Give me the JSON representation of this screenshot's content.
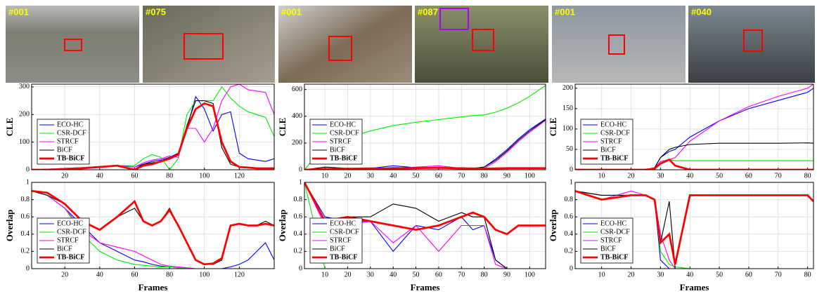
{
  "thumbnails": [
    {
      "label": "#001"
    },
    {
      "label": "#075"
    },
    {
      "label": "#001"
    },
    {
      "label": "#087"
    },
    {
      "label": "#001"
    },
    {
      "label": "#040"
    }
  ],
  "chart_data": [
    {
      "type": "line",
      "ylabel": "CLE",
      "legend": "lower left",
      "grid": true,
      "xlim": [
        1,
        140
      ],
      "xticks": [
        20,
        40,
        60,
        80,
        100,
        120
      ],
      "ylim": [
        0,
        310
      ],
      "yticks": [
        0,
        100,
        200,
        300
      ],
      "x": [
        1,
        10,
        20,
        30,
        40,
        50,
        60,
        65,
        70,
        75,
        80,
        85,
        90,
        95,
        100,
        105,
        110,
        115,
        120,
        125,
        130,
        135,
        140
      ],
      "series": [
        {
          "name": "ECO-HC",
          "color": "#0000ff",
          "width": 1,
          "values": [
            0,
            2,
            5,
            8,
            12,
            15,
            10,
            20,
            30,
            35,
            45,
            60,
            150,
            265,
            220,
            140,
            200,
            210,
            60,
            40,
            35,
            30,
            40
          ]
        },
        {
          "name": "CSR-DCF",
          "color": "#00ee00",
          "width": 1,
          "values": [
            0,
            2,
            5,
            8,
            12,
            15,
            15,
            40,
            55,
            45,
            0,
            40,
            200,
            250,
            250,
            250,
            300,
            260,
            230,
            210,
            200,
            190,
            120
          ]
        },
        {
          "name": "STRCF",
          "color": "#ff00ff",
          "width": 1,
          "values": [
            0,
            2,
            5,
            8,
            12,
            15,
            10,
            25,
            35,
            40,
            50,
            45,
            150,
            150,
            100,
            150,
            250,
            300,
            310,
            290,
            285,
            280,
            200
          ]
        },
        {
          "name": "BiCF",
          "color": "#000000",
          "width": 1,
          "values": [
            0,
            0,
            2,
            5,
            10,
            15,
            2,
            20,
            25,
            30,
            40,
            60,
            160,
            250,
            250,
            240,
            80,
            20,
            10,
            8,
            5,
            5,
            5
          ]
        },
        {
          "name": "TB-BiCF",
          "color": "#ff0000",
          "width": 2.5,
          "values": [
            0,
            0,
            2,
            5,
            10,
            15,
            0,
            15,
            20,
            30,
            40,
            55,
            150,
            220,
            240,
            230,
            100,
            30,
            10,
            8,
            5,
            5,
            5
          ]
        }
      ]
    },
    {
      "type": "line",
      "ylabel": "Overlap",
      "xlabel": "Frames",
      "legend": "lower left",
      "grid": true,
      "xlim": [
        1,
        140
      ],
      "xticks": [
        20,
        40,
        60,
        80,
        100,
        120
      ],
      "ylim": [
        0,
        1
      ],
      "yticks": [
        0,
        0.2,
        0.4,
        0.6,
        0.8,
        1
      ],
      "x": [
        1,
        10,
        20,
        30,
        40,
        50,
        60,
        65,
        70,
        75,
        80,
        85,
        90,
        95,
        100,
        105,
        110,
        115,
        120,
        125,
        130,
        135,
        140
      ],
      "series": [
        {
          "name": "ECO-HC",
          "color": "#0000ff",
          "width": 1,
          "values": [
            0.9,
            0.85,
            0.7,
            0.5,
            0.3,
            0.2,
            0.1,
            0.08,
            0.05,
            0.03,
            0.02,
            0.01,
            0,
            0,
            0,
            0,
            0,
            0.02,
            0.05,
            0.1,
            0.2,
            0.3,
            0.1
          ]
        },
        {
          "name": "CSR-DCF",
          "color": "#00ee00",
          "width": 1,
          "values": [
            0.9,
            0.85,
            0.7,
            0.4,
            0.2,
            0.1,
            0.05,
            0.04,
            0.03,
            0.02,
            0.02,
            0.01,
            0,
            0,
            0,
            0,
            0,
            0,
            0,
            0,
            0,
            0,
            0
          ]
        },
        {
          "name": "STRCF",
          "color": "#ff00ff",
          "width": 1,
          "values": [
            0.9,
            0.85,
            0.7,
            0.45,
            0.3,
            0.25,
            0.2,
            0.15,
            0.1,
            0.05,
            0.03,
            0.02,
            0.01,
            0,
            0,
            0,
            0,
            0,
            0,
            0,
            0,
            0,
            0
          ]
        },
        {
          "name": "BiCF",
          "color": "#000000",
          "width": 1,
          "values": [
            0.9,
            0.85,
            0.75,
            0.55,
            0.45,
            0.6,
            0.7,
            0.55,
            0.5,
            0.55,
            0.7,
            0.5,
            0.3,
            0.1,
            0.05,
            0.05,
            0.1,
            0.5,
            0.52,
            0.5,
            0.5,
            0.55,
            0.5
          ]
        },
        {
          "name": "TB-BiCF",
          "color": "#ff0000",
          "width": 2.5,
          "values": [
            0.9,
            0.88,
            0.75,
            0.55,
            0.45,
            0.6,
            0.78,
            0.55,
            0.5,
            0.55,
            0.68,
            0.5,
            0.3,
            0.1,
            0.05,
            0.06,
            0.12,
            0.5,
            0.52,
            0.5,
            0.5,
            0.52,
            0.5
          ]
        }
      ]
    },
    {
      "type": "line",
      "ylabel": "CLE",
      "legend": "lower left",
      "grid": true,
      "xlim": [
        1,
        107
      ],
      "xticks": [
        10,
        20,
        30,
        40,
        50,
        60,
        70,
        80,
        90,
        100
      ],
      "ylim": [
        0,
        640
      ],
      "yticks": [
        0,
        200,
        400,
        600
      ],
      "x": [
        1,
        10,
        20,
        30,
        40,
        50,
        60,
        70,
        75,
        80,
        85,
        90,
        95,
        100,
        107
      ],
      "series": [
        {
          "name": "ECO-HC",
          "color": "#0000ff",
          "width": 1,
          "values": [
            0,
            10,
            5,
            10,
            30,
            15,
            10,
            10,
            10,
            20,
            80,
            150,
            230,
            300,
            380
          ]
        },
        {
          "name": "CSR-DCF",
          "color": "#00ee00",
          "width": 1,
          "values": [
            0,
            180,
            240,
            290,
            330,
            355,
            375,
            395,
            405,
            410,
            430,
            460,
            500,
            550,
            630
          ]
        },
        {
          "name": "STRCF",
          "color": "#ff00ff",
          "width": 1,
          "values": [
            0,
            5,
            10,
            5,
            10,
            20,
            30,
            10,
            5,
            10,
            60,
            130,
            210,
            280,
            370
          ]
        },
        {
          "name": "BiCF",
          "color": "#000000",
          "width": 1,
          "values": [
            0,
            20,
            10,
            10,
            15,
            15,
            15,
            15,
            10,
            20,
            70,
            140,
            220,
            290,
            375
          ]
        },
        {
          "name": "TB-BiCF",
          "color": "#ff0000",
          "width": 2.5,
          "values": [
            0,
            5,
            8,
            10,
            8,
            12,
            15,
            10,
            10,
            8,
            10,
            12,
            12,
            12,
            12
          ]
        }
      ]
    },
    {
      "type": "line",
      "ylabel": "Overlap",
      "xlabel": "Frames",
      "legend": "lower left",
      "grid": true,
      "xlim": [
        1,
        107
      ],
      "xticks": [
        10,
        20,
        30,
        40,
        50,
        60,
        70,
        80,
        90,
        100
      ],
      "ylim": [
        0,
        1
      ],
      "yticks": [
        0,
        0.2,
        0.4,
        0.6,
        0.8,
        1
      ],
      "x": [
        1,
        10,
        20,
        30,
        40,
        50,
        60,
        70,
        75,
        80,
        85,
        90,
        95,
        100,
        107
      ],
      "series": [
        {
          "name": "ECO-HC",
          "color": "#0000ff",
          "width": 1,
          "values": [
            1,
            0.6,
            0.55,
            0.55,
            0.2,
            0.5,
            0.45,
            0.6,
            0.45,
            0.5,
            0.1,
            0,
            0,
            0,
            0
          ]
        },
        {
          "name": "CSR-DCF",
          "color": "#00ee00",
          "width": 1,
          "values": [
            1,
            0,
            0,
            0,
            0,
            0,
            0,
            0,
            0,
            0,
            0,
            0,
            0,
            0,
            0
          ]
        },
        {
          "name": "STRCF",
          "color": "#ff00ff",
          "width": 1,
          "values": [
            1,
            0.5,
            0.5,
            0.55,
            0.3,
            0.5,
            0.2,
            0.5,
            0.5,
            0.5,
            0.05,
            0,
            0,
            0,
            0
          ]
        },
        {
          "name": "BiCF",
          "color": "#000000",
          "width": 1,
          "values": [
            1,
            0.55,
            0.6,
            0.6,
            0.75,
            0.7,
            0.55,
            0.65,
            0.6,
            0.6,
            0.1,
            0,
            0,
            0,
            0
          ]
        },
        {
          "name": "TB-BiCF",
          "color": "#ff0000",
          "width": 2.5,
          "values": [
            1,
            0.55,
            0.6,
            0.55,
            0.5,
            0.45,
            0.5,
            0.6,
            0.65,
            0.6,
            0.45,
            0.4,
            0.5,
            0.5,
            0.5
          ]
        }
      ]
    },
    {
      "type": "line",
      "ylabel": "CLE",
      "legend": "lower left",
      "grid": true,
      "xlim": [
        1,
        82
      ],
      "xticks": [
        10,
        20,
        30,
        40,
        50,
        60,
        70,
        80
      ],
      "ylim": [
        0,
        210
      ],
      "yticks": [
        0,
        50,
        100,
        150,
        200
      ],
      "x": [
        1,
        10,
        20,
        25,
        28,
        30,
        33,
        35,
        40,
        50,
        60,
        70,
        80,
        82
      ],
      "series": [
        {
          "name": "ECO-HC",
          "color": "#0000ff",
          "width": 1,
          "values": [
            0,
            0,
            0,
            0,
            5,
            30,
            45,
            50,
            80,
            120,
            150,
            170,
            190,
            200
          ]
        },
        {
          "name": "CSR-DCF",
          "color": "#00ee00",
          "width": 1,
          "values": [
            0,
            0,
            0,
            0,
            5,
            20,
            25,
            22,
            22,
            22,
            22,
            22,
            22,
            22
          ]
        },
        {
          "name": "STRCF",
          "color": "#ff00ff",
          "width": 1,
          "values": [
            0,
            0,
            0,
            0,
            5,
            20,
            25,
            30,
            70,
            120,
            155,
            180,
            200,
            210
          ]
        },
        {
          "name": "BiCF",
          "color": "#000000",
          "width": 1,
          "values": [
            0,
            0,
            0,
            0,
            5,
            30,
            50,
            55,
            62,
            65,
            65,
            65,
            66,
            65
          ]
        },
        {
          "name": "TB-BiCF",
          "color": "#ff0000",
          "width": 2.5,
          "values": [
            0,
            0,
            0,
            0,
            3,
            15,
            25,
            10,
            0,
            0,
            0,
            0,
            0,
            0
          ]
        }
      ]
    },
    {
      "type": "line",
      "ylabel": "Overlap",
      "xlabel": "Frames",
      "legend": "lower left",
      "grid": true,
      "xlim": [
        1,
        82
      ],
      "xticks": [
        10,
        20,
        30,
        40,
        50,
        60,
        70,
        80
      ],
      "ylim": [
        0,
        1
      ],
      "yticks": [
        0,
        0.2,
        0.4,
        0.6,
        0.8,
        1
      ],
      "x": [
        1,
        10,
        20,
        25,
        28,
        30,
        33,
        35,
        40,
        50,
        60,
        70,
        80,
        82
      ],
      "series": [
        {
          "name": "ECO-HC",
          "color": "#0000ff",
          "width": 1,
          "values": [
            0.9,
            0.85,
            0.85,
            0.85,
            0.8,
            0.1,
            0,
            0,
            0,
            0,
            0,
            0,
            0,
            0
          ]
        },
        {
          "name": "CSR-DCF",
          "color": "#00ee00",
          "width": 1,
          "values": [
            0.9,
            0.85,
            0.85,
            0.85,
            0.8,
            0.2,
            0.05,
            0.02,
            0,
            0,
            0,
            0,
            0,
            0
          ]
        },
        {
          "name": "STRCF",
          "color": "#ff00ff",
          "width": 1,
          "values": [
            0.9,
            0.8,
            0.9,
            0.85,
            0.8,
            0.4,
            0.1,
            0,
            0,
            0,
            0,
            0,
            0,
            0
          ]
        },
        {
          "name": "BiCF",
          "color": "#000000",
          "width": 1,
          "values": [
            0.9,
            0.85,
            0.85,
            0.85,
            0.8,
            0.3,
            0.78,
            0,
            0,
            0,
            0,
            0,
            0,
            0
          ]
        },
        {
          "name": "TB-BiCF",
          "color": "#ff0000",
          "width": 2.5,
          "values": [
            0.9,
            0.8,
            0.85,
            0.85,
            0.8,
            0.3,
            0.4,
            0.05,
            0.85,
            0.85,
            0.85,
            0.85,
            0.85,
            0.78
          ]
        }
      ]
    }
  ]
}
